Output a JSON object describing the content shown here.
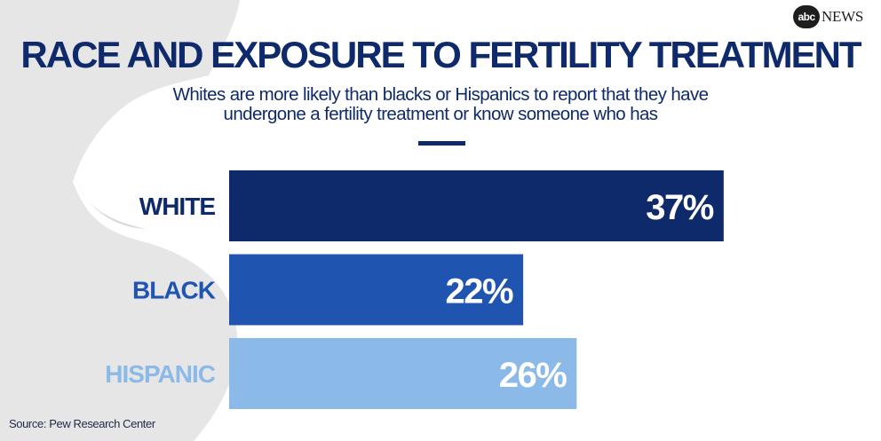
{
  "brand": {
    "badge": "abc",
    "name": "NEWS"
  },
  "header": {
    "title": "RACE AND EXPOSURE TO FERTILITY TREATMENT",
    "subtitle_lines": [
      "Whites are more likely than blacks or Hispanics to report that they have",
      "undergone a fertility treatment or know someone who has"
    ]
  },
  "footer": {
    "source": "Source: Pew Research Center"
  },
  "chart_data": {
    "type": "bar",
    "orientation": "horizontal",
    "title": "RACE AND EXPOSURE TO FERTILITY TREATMENT",
    "subtitle": "Whites are more likely than blacks or Hispanics to report that they have undergone a fertility treatment or know someone who has",
    "categories": [
      "WHITE",
      "BLACK",
      "HISPANIC"
    ],
    "values": [
      37,
      22,
      26
    ],
    "value_labels": [
      "37%",
      "22%",
      "26%"
    ],
    "unit": "%",
    "bar_colors": [
      "#0f2a6b",
      "#1f55b0",
      "#8bb9e8"
    ],
    "label_colors": [
      "#0f2a6b",
      "#1f55b0",
      "#8bb9e8"
    ],
    "grid": false,
    "legend": "none"
  }
}
